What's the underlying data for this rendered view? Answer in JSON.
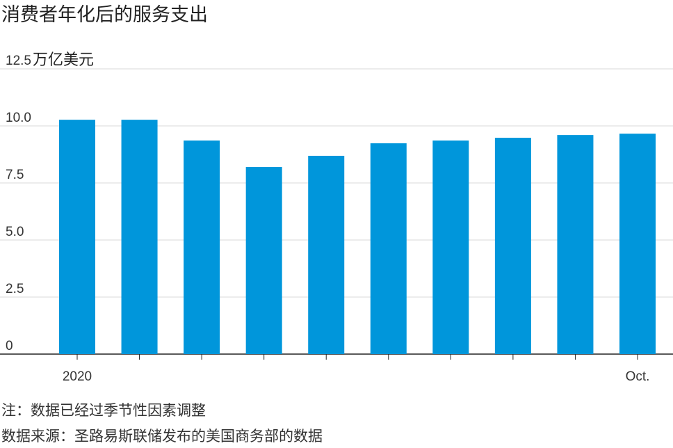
{
  "chart_data": {
    "type": "bar",
    "title": "消费者年化后的服务支出",
    "y_unit": "万亿美元",
    "categories": [
      "2020",
      null,
      null,
      null,
      null,
      null,
      null,
      null,
      null,
      "Oct."
    ],
    "values": [
      10.27,
      10.27,
      9.36,
      8.2,
      8.69,
      9.24,
      9.36,
      9.48,
      9.6,
      9.66
    ],
    "color": "#0096db",
    "ylim": [
      0,
      12.5
    ],
    "yticks": [
      0,
      {
        "value": 2.5,
        "label": "2.5"
      },
      {
        "value": 5,
        "label": "5.0"
      },
      {
        "value": 7.5,
        "label": "7.5"
      },
      {
        "value": 10,
        "label": "10.0"
      },
      12.5
    ],
    "grid": true,
    "notes": [
      "注：数据已经过季节性因素调整",
      "数据来源：圣路易斯联储发布的美国商务部的数据"
    ]
  }
}
